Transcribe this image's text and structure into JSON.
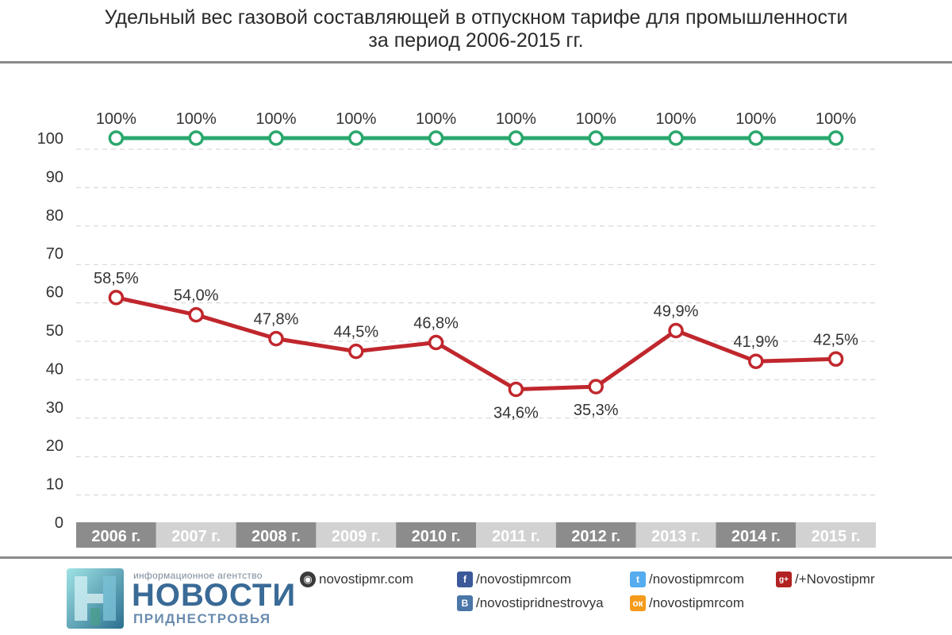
{
  "title": {
    "line1": "Удельный вес газовой составляющей в отпускном тарифе для промышленности",
    "line2": "за период 2006-2015 гг."
  },
  "chart_data": {
    "type": "line",
    "categories": [
      "2006 г.",
      "2007 г.",
      "2008 г.",
      "2009 г.",
      "2010 г.",
      "2011 г.",
      "2012 г.",
      "2013 г.",
      "2014 г.",
      "2015 г."
    ],
    "series": [
      {
        "color": "#2aa86e",
        "values": [
          100,
          100,
          100,
          100,
          100,
          100,
          100,
          100,
          100,
          100
        ],
        "labels": [
          "100%",
          "100%",
          "100%",
          "100%",
          "100%",
          "100%",
          "100%",
          "100%",
          "100%",
          "100%"
        ],
        "label_position": "above"
      },
      {
        "color": "#c0272d",
        "values": [
          58.5,
          54.0,
          47.8,
          44.5,
          46.8,
          34.6,
          35.3,
          49.9,
          41.9,
          42.5
        ],
        "labels": [
          "58,5%",
          "54,0%",
          "47,8%",
          "44,5%",
          "46,8%",
          "34,6%",
          "35,3%",
          "49,9%",
          "41,9%",
          "42,5%"
        ],
        "label_position": [
          "above",
          "above",
          "above",
          "above",
          "above",
          "below",
          "below",
          "above",
          "above",
          "above"
        ]
      }
    ],
    "yticks": [
      0,
      10,
      20,
      30,
      40,
      50,
      60,
      70,
      80,
      90,
      100
    ],
    "ylim": [
      0,
      100
    ],
    "grid": true,
    "category_band_colors": [
      "#8c8c8c",
      "#d2d2d2"
    ]
  },
  "footer": {
    "agency_small": "информационное агентство",
    "agency_big": "НОВОСТИ",
    "agency_sub": "ПРИДНЕСТРОВЬЯ",
    "links": {
      "site": "novostipmr.com",
      "facebook": "/novostipmrcom",
      "twitter": "/novostipmrcom",
      "gplus": "/+Novostipmr",
      "vk": "/novostipridnestrovya",
      "ok": "/novostipmrcom"
    },
    "icons": {
      "site": "globe-icon",
      "facebook": "facebook-icon",
      "twitter": "twitter-icon",
      "gplus": "google-plus-icon",
      "vk": "vk-icon",
      "ok": "odnoklassniki-icon"
    }
  }
}
